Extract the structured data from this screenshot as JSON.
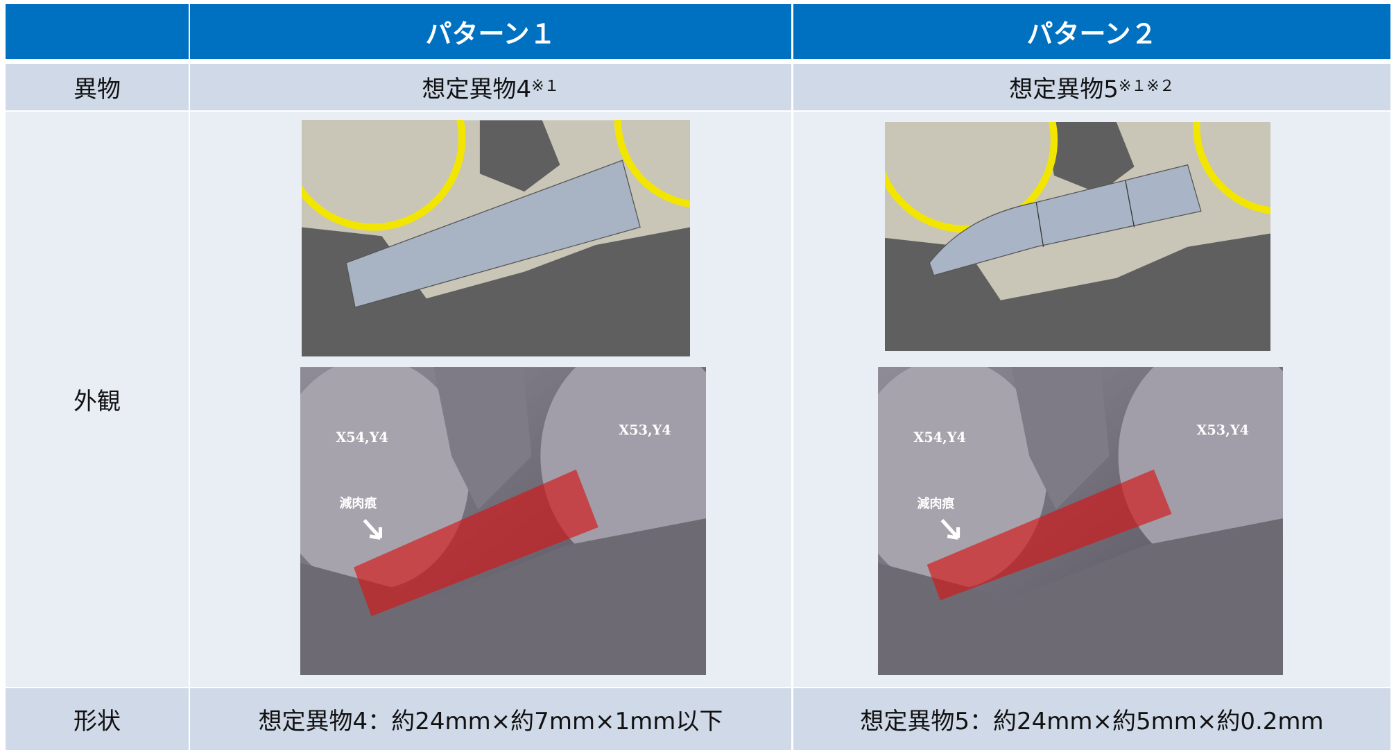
{
  "table": {
    "header": [
      "パターン１",
      "パターン２"
    ],
    "rows": [
      {
        "label": "異物",
        "cells": [
          {
            "text": "想定異物4",
            "note": "※１"
          },
          {
            "text": "想定異物5",
            "note": "※１※２"
          }
        ]
      },
      {
        "label": "外観",
        "cells": [
          {
            "labels": [
              "X54,Y4",
              "X53,Y4",
              "減肉痕"
            ]
          },
          {
            "labels": [
              "X54,Y4",
              "X53,Y4",
              "減肉痕"
            ]
          }
        ]
      },
      {
        "label": "形状",
        "cells": [
          "想定異物4：約24mm×約7mm×1mm以下",
          "想定異物5：約24mm×約5mm×約0.2mm"
        ]
      }
    ]
  }
}
